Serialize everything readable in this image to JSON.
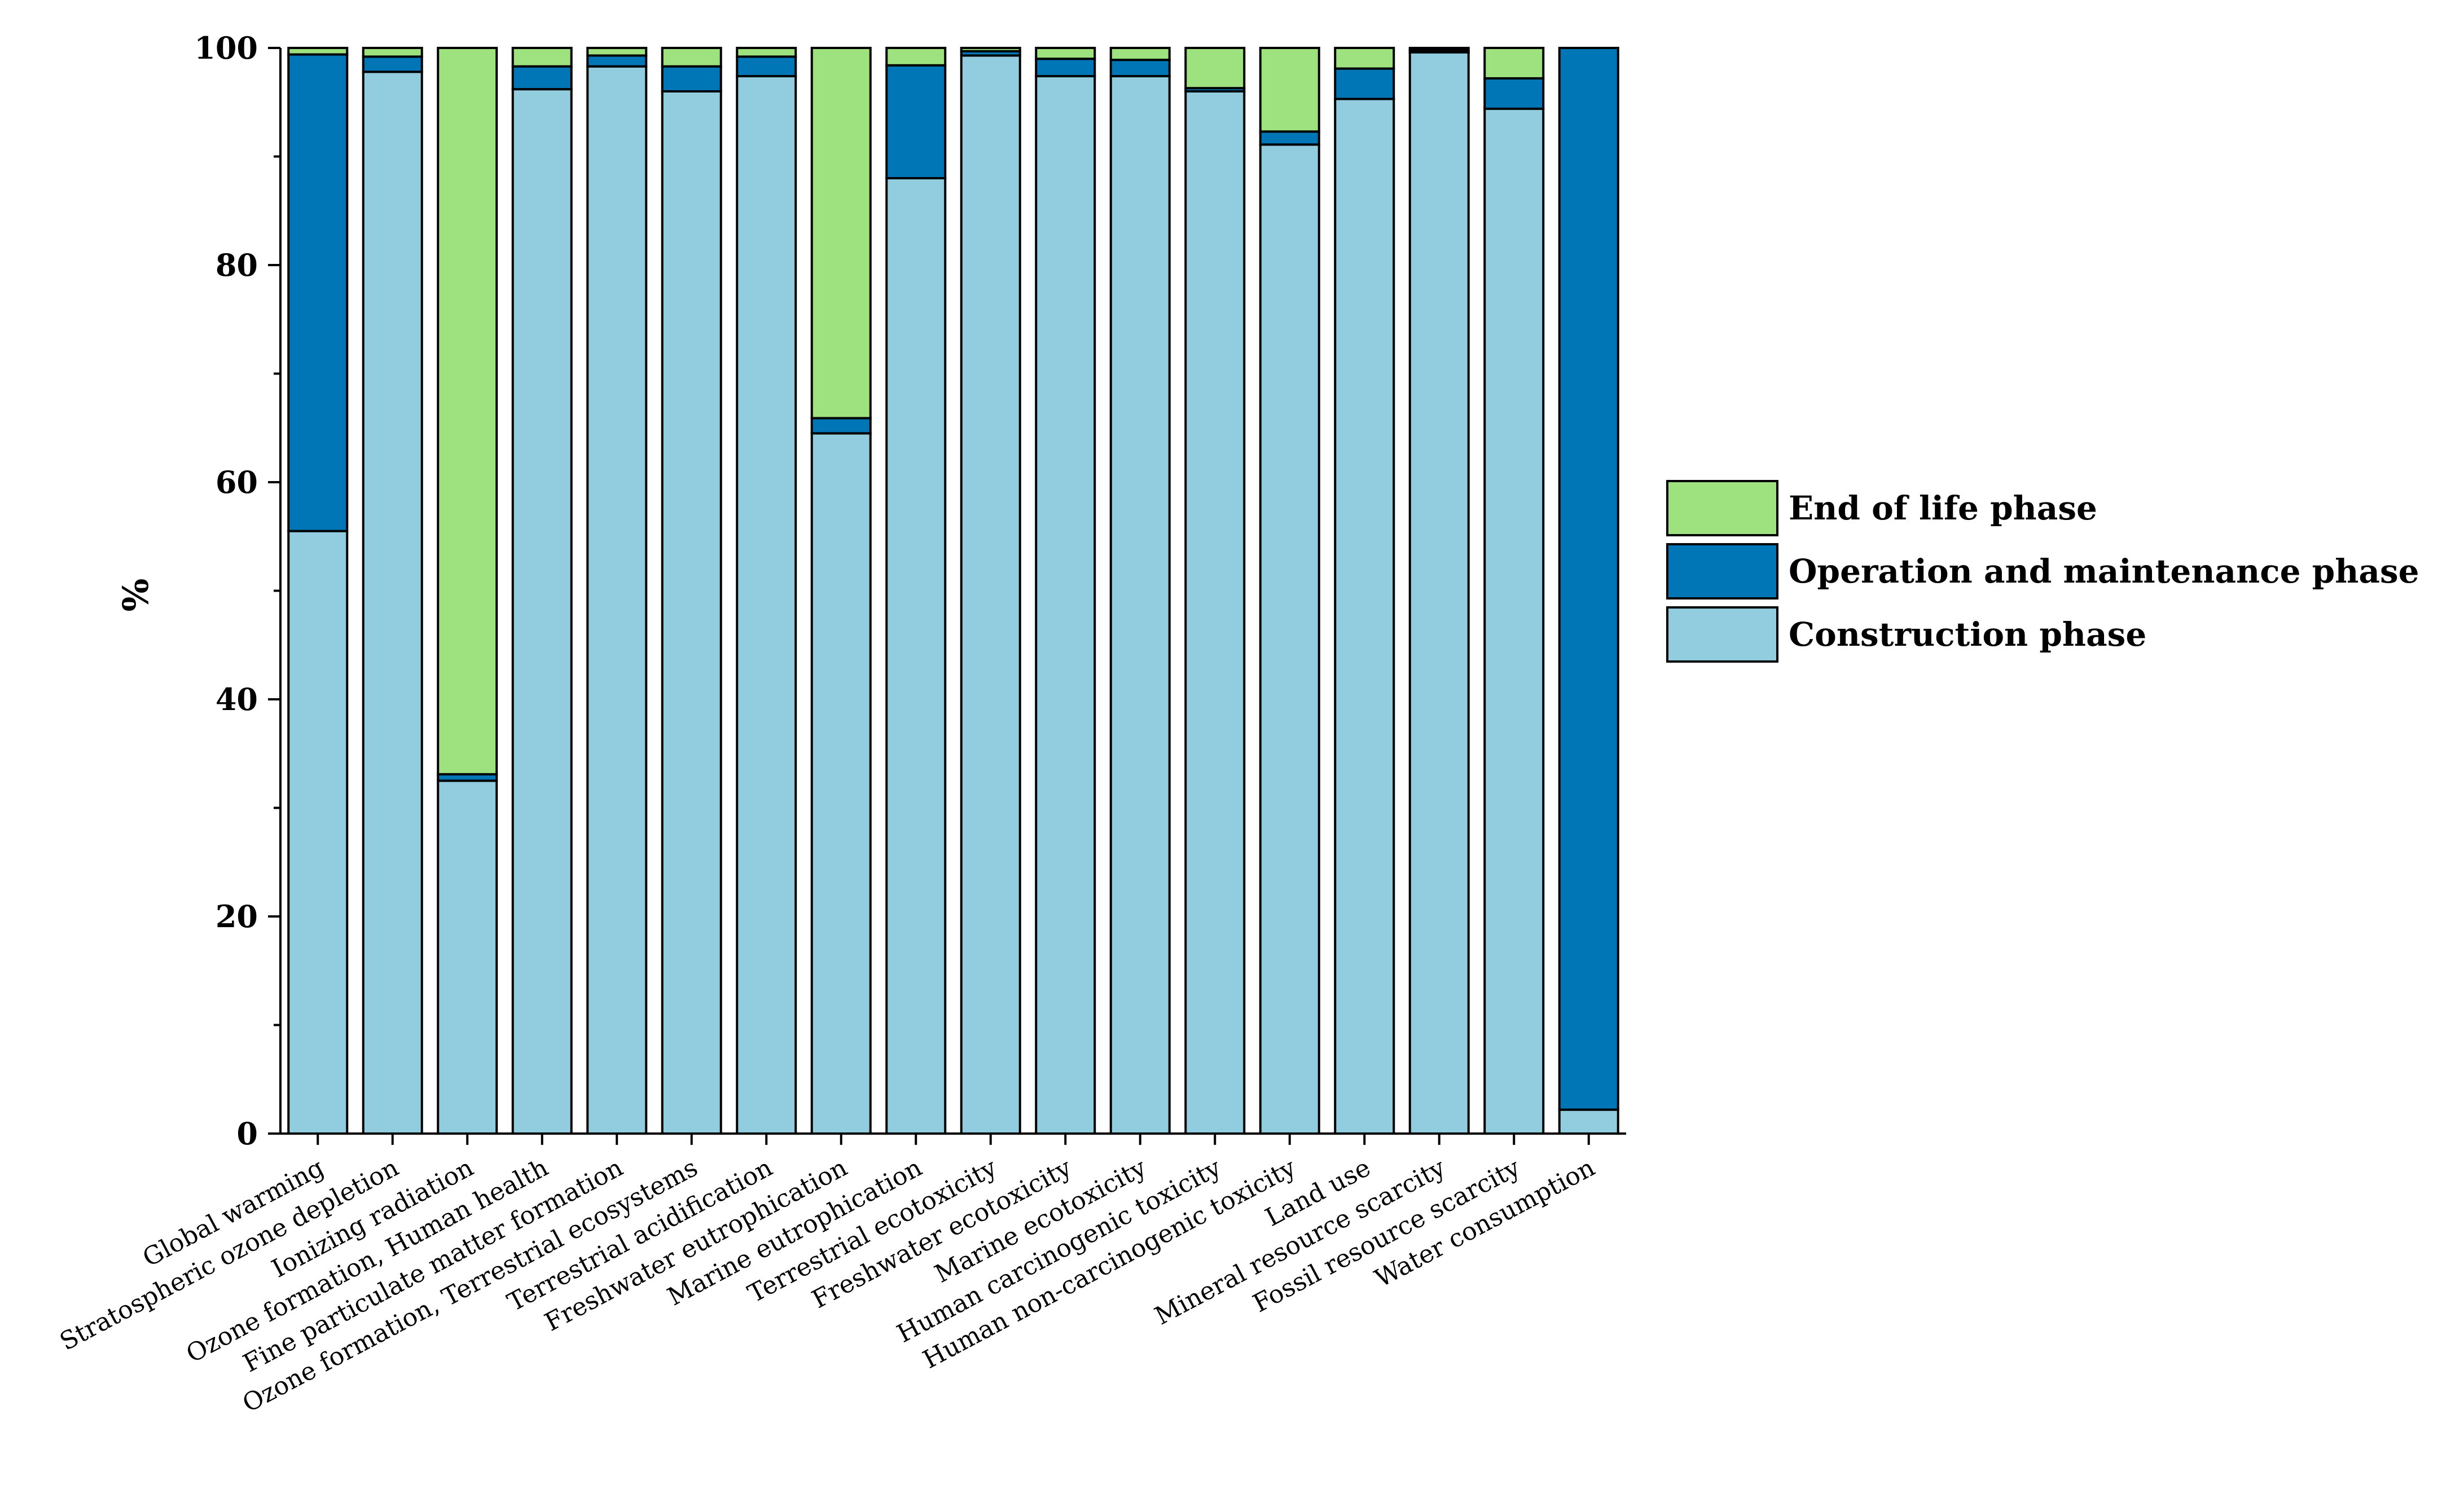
{
  "chart_data": {
    "type": "bar",
    "stacked": true,
    "title": "",
    "xlabel": "",
    "ylabel": "%",
    "ylim": [
      0,
      100
    ],
    "yticks": [
      0,
      20,
      40,
      60,
      80,
      100
    ],
    "legend_position": "right",
    "categories": [
      "Global warming",
      "Stratospheric ozone depletion",
      "Ionizing radiation",
      "Ozone formation, Human health",
      "Fine particulate matter formation",
      "Ozone formation, Terrestrial ecosystems",
      "Terrestrial acidification",
      "Freshwater eutrophication",
      "Marine eutrophication",
      "Terrestrial ecotoxicity",
      "Freshwater ecotoxicity",
      "Marine ecotoxicity",
      "Human carcinogenic toxicity",
      "Human non-carcinogenic toxicity",
      "Land use",
      "Mineral resource scarcity",
      "Fossil resource scarcity",
      "Water consumption"
    ],
    "series": [
      {
        "name": "Construction phase",
        "color": "#92cddf",
        "values": [
          55.5,
          97.8,
          32.5,
          96.2,
          98.3,
          96.0,
          97.4,
          64.5,
          88.0,
          99.3,
          97.4,
          97.4,
          96.0,
          91.1,
          95.3,
          99.6,
          94.4,
          2.2
        ]
      },
      {
        "name": "Operation and maintenance phase",
        "color": "#0176b6",
        "values": [
          43.9,
          1.4,
          0.6,
          2.1,
          1.0,
          2.3,
          1.8,
          1.4,
          10.4,
          0.4,
          1.6,
          1.5,
          0.3,
          1.2,
          2.8,
          0.2,
          2.8,
          97.8
        ]
      },
      {
        "name": "End of life phase",
        "color": "#9ee280",
        "values": [
          0.6,
          0.8,
          66.9,
          1.7,
          0.7,
          1.7,
          0.8,
          34.1,
          1.6,
          0.3,
          1.0,
          1.1,
          3.7,
          7.7,
          1.9,
          0.2,
          2.8,
          0.0
        ]
      }
    ],
    "legend_order": [
      "End of life phase",
      "Operation and maintenance phase",
      "Construction phase"
    ]
  }
}
